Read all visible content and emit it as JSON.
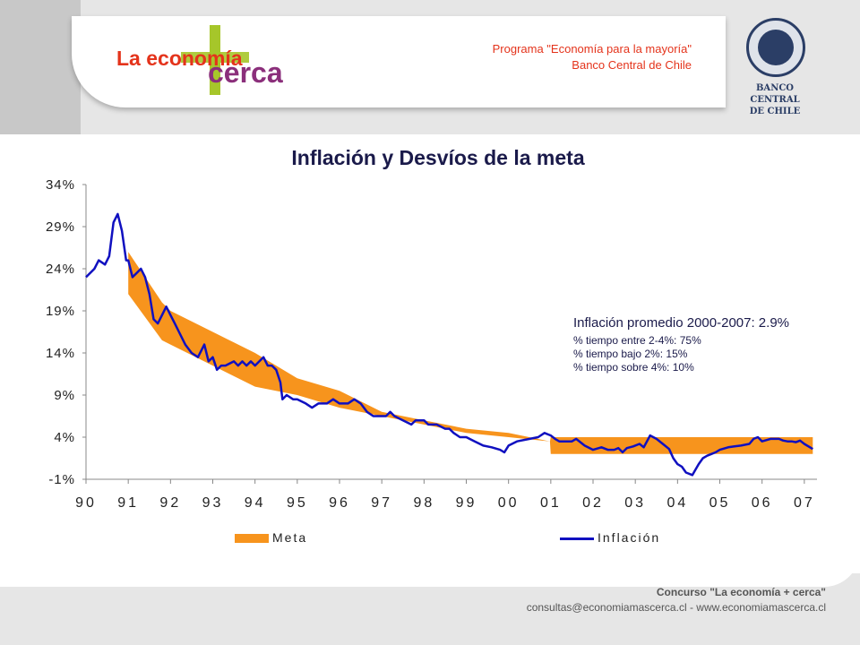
{
  "header": {
    "logo_prefix": "La economía",
    "logo_suffix": "cerca",
    "program_line1": "Programa \"Economía para la mayoría\"",
    "program_line2": "Banco Central de Chile",
    "bank_line1": "BANCO CENTRAL",
    "bank_line2": "DE CHILE"
  },
  "colors": {
    "meta": "#f7941d",
    "inflacion": "#1010c0",
    "text": "#1a1a4a"
  },
  "stats": {
    "main": "Inflación promedio 2000-2007: 2.9%",
    "line1": "% tiempo entre 2-4%: 75%",
    "line2": "% tiempo bajo 2%: 15%",
    "line3": "% tiempo sobre 4%: 10%"
  },
  "footer": {
    "line1": "Concurso \"La economía + cerca\"",
    "line2": "consultas@economiamascerca.cl - www.economiamascerca.cl"
  },
  "chart_data": {
    "type": "line",
    "title": "Inflación y Desvíos de la meta",
    "ylim": [
      -1,
      34
    ],
    "xlim": [
      1990,
      2007.3
    ],
    "y_ticks": [
      "-1%",
      "4%",
      "9%",
      "14%",
      "19%",
      "24%",
      "29%",
      "34%"
    ],
    "y_tick_values": [
      -1,
      4,
      9,
      14,
      19,
      24,
      29,
      34
    ],
    "x_ticks": [
      "90",
      "91",
      "92",
      "93",
      "94",
      "95",
      "96",
      "97",
      "98",
      "99",
      "00",
      "01",
      "02",
      "03",
      "04",
      "05",
      "06",
      "07"
    ],
    "x_tick_values": [
      1990,
      1991,
      1992,
      1993,
      1994,
      1995,
      1996,
      1997,
      1998,
      1999,
      2000,
      2001,
      2002,
      2003,
      2004,
      2005,
      2006,
      2007
    ],
    "legend": [
      "Meta",
      "Inflación"
    ],
    "legend_placement": "bottom",
    "series": [
      {
        "name": "Meta",
        "kind": "band",
        "x": [
          1991.0,
          1991.8,
          1992.0,
          1993.0,
          1994.0,
          1995.0,
          1996.0,
          1997.0,
          1998.0,
          1999.0,
          2000.0,
          2000.98,
          2001.0,
          2007.2
        ],
        "upper": [
          26.0,
          20.0,
          19.0,
          16.5,
          14.0,
          11.0,
          9.5,
          7.0,
          6.0,
          5.0,
          4.5,
          3.5,
          4.0,
          4.0
        ],
        "lower": [
          21.0,
          15.5,
          15.0,
          12.5,
          10.0,
          9.0,
          7.5,
          6.5,
          5.5,
          4.5,
          4.0,
          3.5,
          2.0,
          2.0
        ]
      },
      {
        "name": "Inflación",
        "kind": "line",
        "x": [
          1990.0,
          1990.2,
          1990.3,
          1990.45,
          1990.55,
          1990.65,
          1990.75,
          1990.85,
          1990.95,
          1991.0,
          1991.1,
          1991.2,
          1991.3,
          1991.4,
          1991.5,
          1991.6,
          1991.7,
          1991.8,
          1991.9,
          1992.0,
          1992.1,
          1992.2,
          1992.35,
          1992.5,
          1992.65,
          1992.8,
          1992.9,
          1993.0,
          1993.1,
          1993.2,
          1993.3,
          1993.5,
          1993.6,
          1993.7,
          1993.8,
          1993.9,
          1994.0,
          1994.1,
          1994.2,
          1994.3,
          1994.4,
          1994.5,
          1994.6,
          1994.65,
          1994.75,
          1994.9,
          1995.0,
          1995.2,
          1995.35,
          1995.5,
          1995.7,
          1995.85,
          1996.0,
          1996.2,
          1996.35,
          1996.5,
          1996.65,
          1996.8,
          1997.0,
          1997.1,
          1997.2,
          1997.3,
          1997.5,
          1997.7,
          1997.8,
          1998.0,
          1998.1,
          1998.3,
          1998.5,
          1998.6,
          1998.7,
          1998.85,
          1999.0,
          1999.2,
          1999.4,
          1999.6,
          1999.8,
          1999.9,
          2000.0,
          2000.2,
          2000.5,
          2000.7,
          2000.85,
          2001.0,
          2001.1,
          2001.2,
          2001.35,
          2001.5,
          2001.6,
          2001.8,
          2002.0,
          2002.2,
          2002.35,
          2002.5,
          2002.6,
          2002.7,
          2002.8,
          2002.95,
          2003.1,
          2003.2,
          2003.35,
          2003.5,
          2003.7,
          2003.8,
          2003.9,
          2004.0,
          2004.1,
          2004.2,
          2004.35,
          2004.5,
          2004.6,
          2004.7,
          2004.8,
          2004.9,
          2005.0,
          2005.2,
          2005.35,
          2005.5,
          2005.7,
          2005.8,
          2005.9,
          2006.0,
          2006.2,
          2006.4,
          2006.5,
          2006.6,
          2006.7,
          2006.8,
          2006.9,
          2007.0,
          2007.2
        ],
        "y": [
          23.0,
          24.0,
          25.0,
          24.5,
          25.5,
          29.5,
          30.5,
          28.5,
          25.0,
          25.0,
          23.0,
          23.5,
          24.0,
          23.0,
          21.0,
          18.0,
          17.5,
          18.5,
          19.5,
          18.5,
          17.5,
          16.5,
          15.0,
          14.0,
          13.5,
          15.0,
          13.0,
          13.5,
          12.0,
          12.5,
          12.5,
          13.0,
          12.5,
          13.0,
          12.5,
          13.0,
          12.5,
          13.0,
          13.5,
          12.5,
          12.5,
          12.0,
          10.5,
          8.5,
          9.0,
          8.5,
          8.5,
          8.0,
          7.5,
          8.0,
          8.0,
          8.5,
          8.0,
          8.0,
          8.5,
          8.0,
          7.0,
          6.5,
          6.5,
          6.5,
          7.0,
          6.5,
          6.0,
          5.5,
          6.0,
          6.0,
          5.5,
          5.5,
          5.0,
          5.0,
          4.5,
          4.0,
          4.0,
          3.5,
          3.0,
          2.8,
          2.5,
          2.2,
          3.0,
          3.5,
          3.8,
          4.0,
          4.5,
          4.2,
          3.8,
          3.5,
          3.5,
          3.5,
          3.8,
          3.0,
          2.5,
          2.8,
          2.5,
          2.5,
          2.7,
          2.2,
          2.7,
          2.9,
          3.2,
          2.8,
          4.2,
          3.8,
          3.0,
          2.6,
          1.5,
          0.8,
          0.5,
          -0.2,
          -0.5,
          0.8,
          1.5,
          1.8,
          2.0,
          2.2,
          2.5,
          2.8,
          2.9,
          3.0,
          3.2,
          3.8,
          4.0,
          3.5,
          3.8,
          3.8,
          3.6,
          3.5,
          3.5,
          3.4,
          3.6,
          3.2,
          2.6
        ]
      }
    ]
  }
}
